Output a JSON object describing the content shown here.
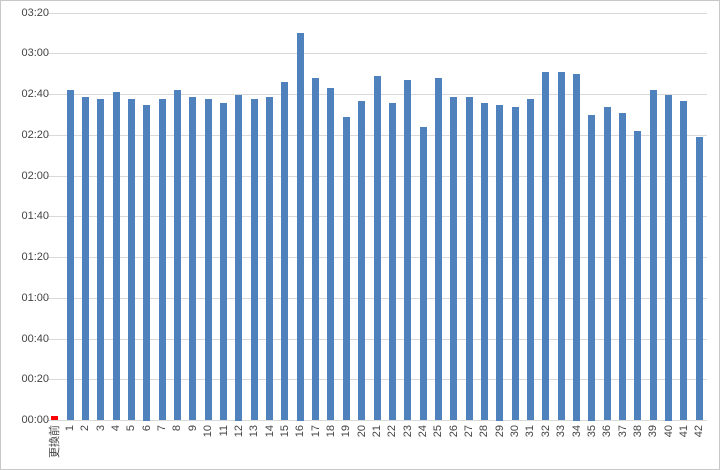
{
  "chart_data": {
    "type": "bar",
    "title": "",
    "xlabel": "",
    "ylabel": "",
    "categories": [
      "更換前",
      "1",
      "2",
      "3",
      "4",
      "5",
      "6",
      "7",
      "8",
      "9",
      "10",
      "11",
      "12",
      "13",
      "14",
      "15",
      "16",
      "17",
      "18",
      "19",
      "20",
      "21",
      "22",
      "23",
      "24",
      "25",
      "26",
      "27",
      "28",
      "29",
      "30",
      "31",
      "32",
      "33",
      "34",
      "35",
      "36",
      "37",
      "38",
      "39",
      "40",
      "41",
      "42"
    ],
    "values": [
      2,
      162,
      159,
      158,
      161,
      158,
      155,
      158,
      162,
      159,
      158,
      156,
      160,
      158,
      159,
      166,
      190,
      168,
      163,
      149,
      157,
      169,
      156,
      167,
      144,
      168,
      159,
      159,
      156,
      155,
      154,
      158,
      171,
      171,
      170,
      150,
      154,
      151,
      142,
      162,
      160,
      157,
      139
    ],
    "value_labels": [
      "00:02",
      "02:42",
      "02:39",
      "02:38",
      "02:41",
      "02:38",
      "02:35",
      "02:38",
      "02:42",
      "02:39",
      "02:38",
      "02:36",
      "02:40",
      "02:38",
      "02:39",
      "02:46",
      "03:10",
      "02:48",
      "02:43",
      "02:29",
      "02:37",
      "02:49",
      "02:36",
      "02:47",
      "02:24",
      "02:48",
      "02:39",
      "02:39",
      "02:36",
      "02:35",
      "02:34",
      "02:38",
      "02:51",
      "02:51",
      "02:50",
      "02:30",
      "02:34",
      "02:31",
      "02:22",
      "02:42",
      "02:40",
      "02:37",
      "02:19"
    ],
    "value_format": "m:ss",
    "y_ticks": [
      "00:00",
      "00:20",
      "00:40",
      "01:00",
      "01:20",
      "01:40",
      "02:00",
      "02:20",
      "02:40",
      "03:00",
      "03:20"
    ],
    "y_tick_step": 20,
    "ylim": [
      0,
      200
    ],
    "grid": true,
    "legend": false,
    "x_label_rotation": -90,
    "colors": {
      "bar_default": "#4f81bd",
      "bar_first": "#ff0000",
      "gridline": "#d9d9d9",
      "axis_text": "#444444",
      "background": "#ffffff",
      "canvas_border": "#c8c8c8"
    }
  }
}
